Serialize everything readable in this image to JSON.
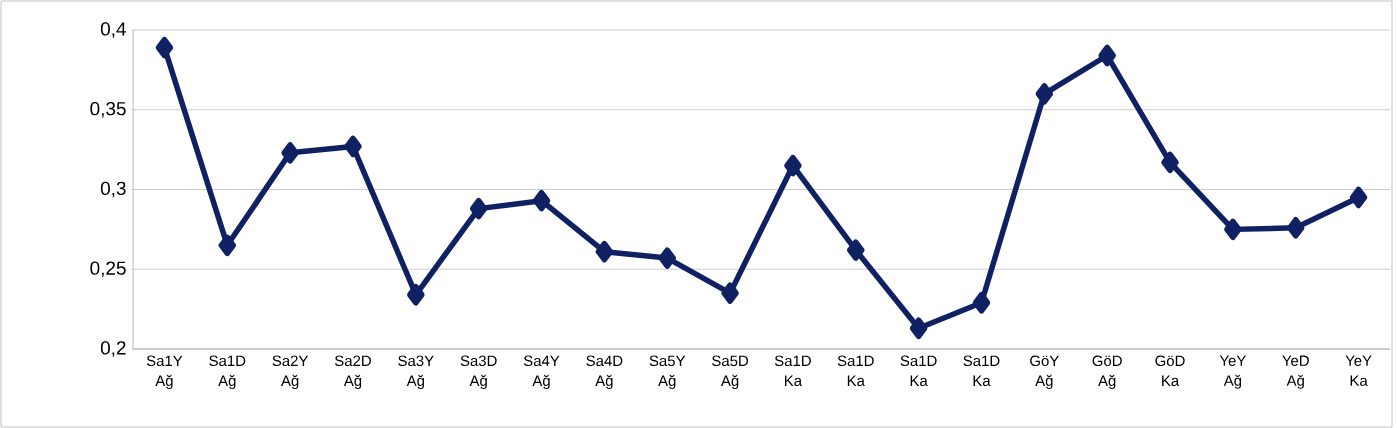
{
  "chart_data": {
    "type": "line",
    "categories": [
      "Sa1Y Ağ",
      "Sa1D Ağ",
      "Sa2Y Ağ",
      "Sa2D Ağ",
      "Sa3Y Ağ",
      "Sa3D Ağ",
      "Sa4Y Ağ",
      "Sa4D Ağ",
      "Sa5Y Ağ",
      "Sa5D Ağ",
      "Sa1D Ka",
      "Sa1D Ka",
      "Sa1D Ka",
      "Sa1D Ka",
      "GöY Ağ",
      "GöD Ağ",
      "GöD Ka",
      "YeY Ağ",
      "YeD Ağ",
      "YeY Ka"
    ],
    "series": [
      {
        "color": "#0f2163",
        "values": [
          0.389,
          0.265,
          0.323,
          0.327,
          0.234,
          0.288,
          0.293,
          0.261,
          0.257,
          0.235,
          0.315,
          0.262,
          0.213,
          0.229,
          0.36,
          0.384,
          0.317,
          0.275,
          0.276,
          0.295
        ]
      }
    ],
    "ylim": [
      0.2,
      0.4
    ],
    "yticks": [
      {
        "value": 0.2,
        "label": "0,2"
      },
      {
        "value": 0.25,
        "label": "0,25"
      },
      {
        "value": 0.3,
        "label": "0,3"
      },
      {
        "value": 0.35,
        "label": "0,35"
      },
      {
        "value": 0.4,
        "label": "0,4"
      }
    ],
    "grid": "y",
    "marker": "diamond",
    "line_style": "solid"
  }
}
